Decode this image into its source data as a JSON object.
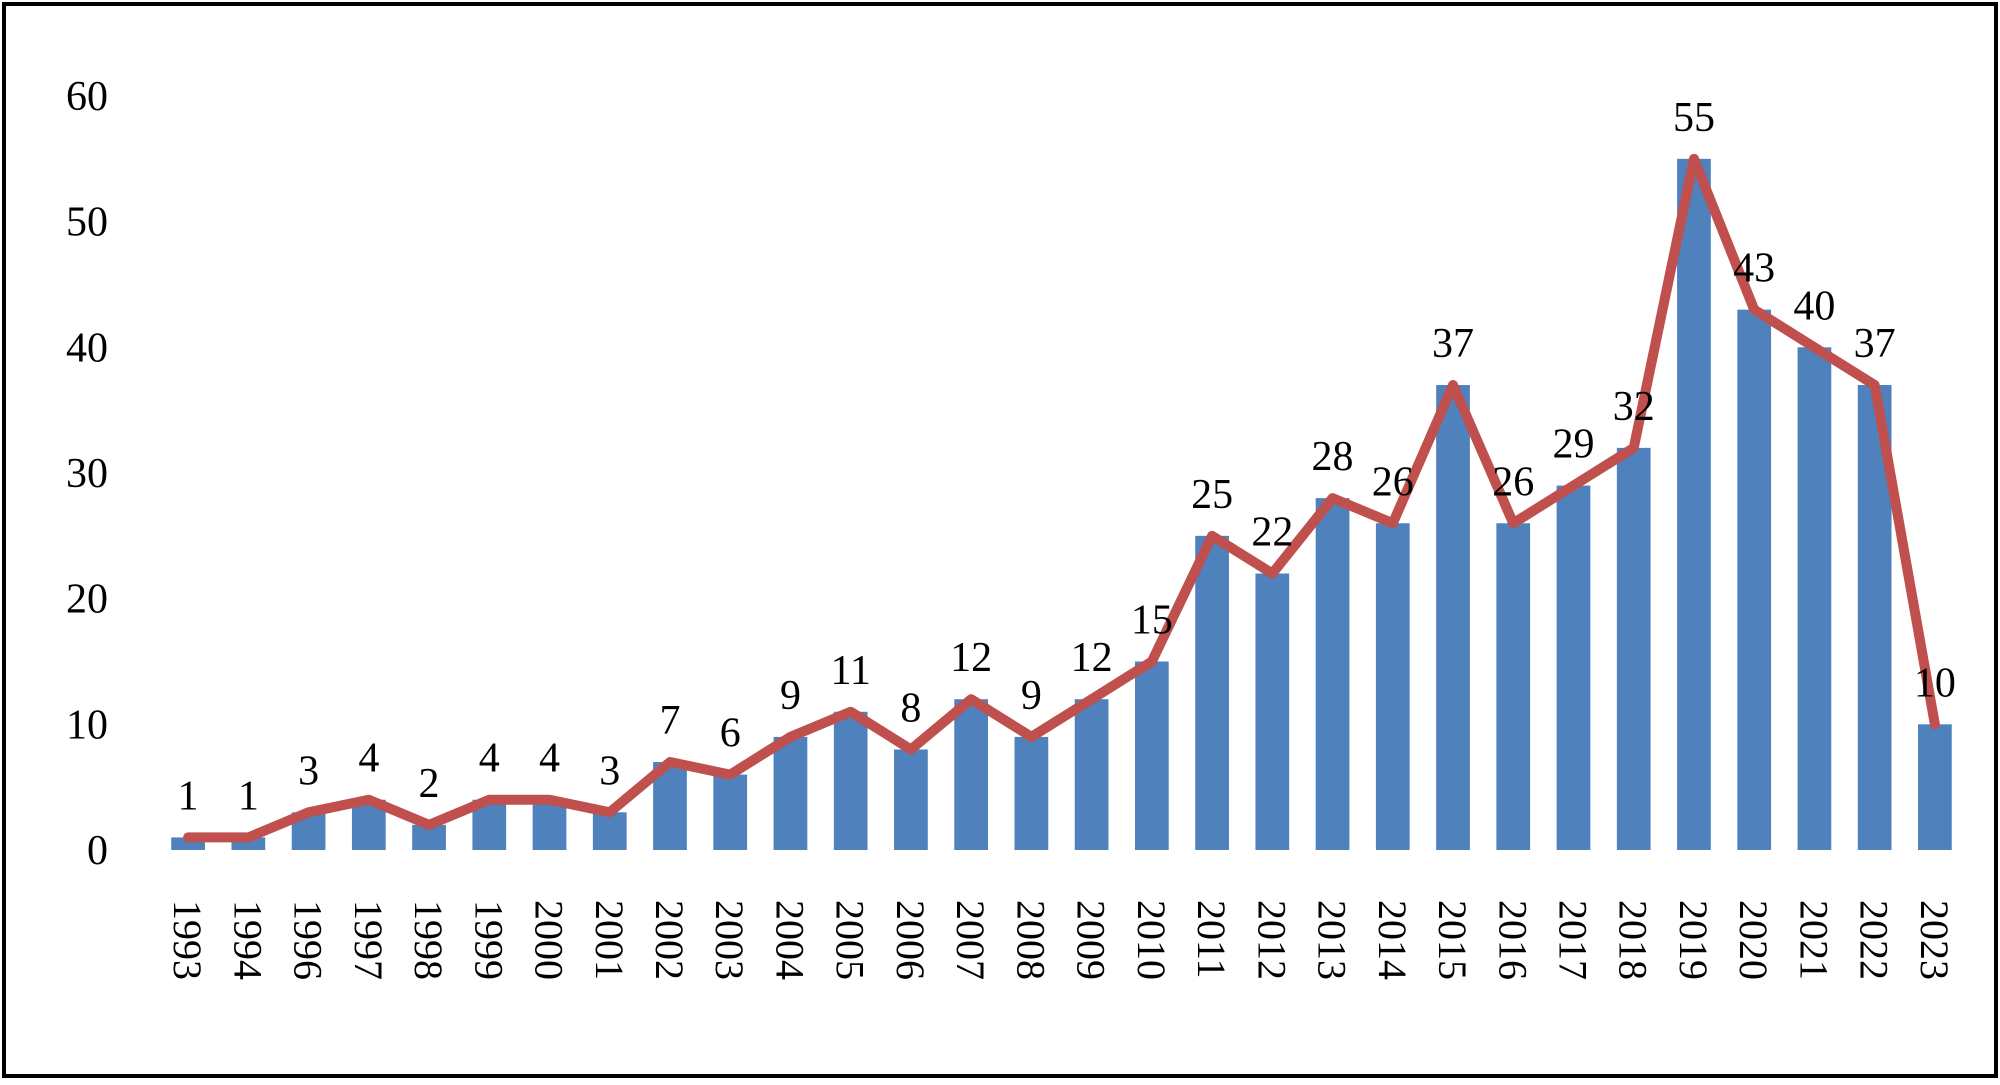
{
  "chart_data": {
    "type": "bar",
    "title": "",
    "xlabel": "",
    "ylabel": "",
    "ylim": [
      0,
      60
    ],
    "yticks": [
      0,
      10,
      20,
      30,
      40,
      50,
      60
    ],
    "grid": false,
    "legend": "none",
    "categories": [
      "1993",
      "1994",
      "1996",
      "1997",
      "1998",
      "1999",
      "2000",
      "2001",
      "2002",
      "2003",
      "2004",
      "2005",
      "2006",
      "2007",
      "2008",
      "2009",
      "2010",
      "2011",
      "2012",
      "2013",
      "2014",
      "2015",
      "2016",
      "2017",
      "2018",
      "2019",
      "2020",
      "2021",
      "2022",
      "2023"
    ],
    "series": [
      {
        "name": "bars",
        "kind": "bar",
        "values": [
          1,
          1,
          3,
          4,
          2,
          4,
          4,
          3,
          7,
          6,
          9,
          11,
          8,
          12,
          9,
          12,
          15,
          25,
          22,
          28,
          26,
          37,
          26,
          29,
          32,
          55,
          43,
          40,
          37,
          10
        ]
      },
      {
        "name": "line",
        "kind": "line",
        "values": [
          1,
          1,
          3,
          4,
          2,
          4,
          4,
          3,
          7,
          6,
          9,
          11,
          8,
          12,
          9,
          12,
          15,
          25,
          22,
          28,
          26,
          37,
          26,
          29,
          32,
          55,
          43,
          40,
          37,
          10
        ]
      }
    ],
    "data_labels": [
      "1",
      "1",
      "3",
      "4",
      "2",
      "4",
      "4",
      "3",
      "7",
      "6",
      "9",
      "11",
      "8",
      "12",
      "9",
      "12",
      "15",
      "25",
      "22",
      "28",
      "26",
      "37",
      "26",
      "29",
      "32",
      "55",
      "43",
      "40",
      "37",
      "10"
    ],
    "colors": {
      "bar": "#4F81BD",
      "line": "#C0504D",
      "border": "#000000"
    }
  }
}
